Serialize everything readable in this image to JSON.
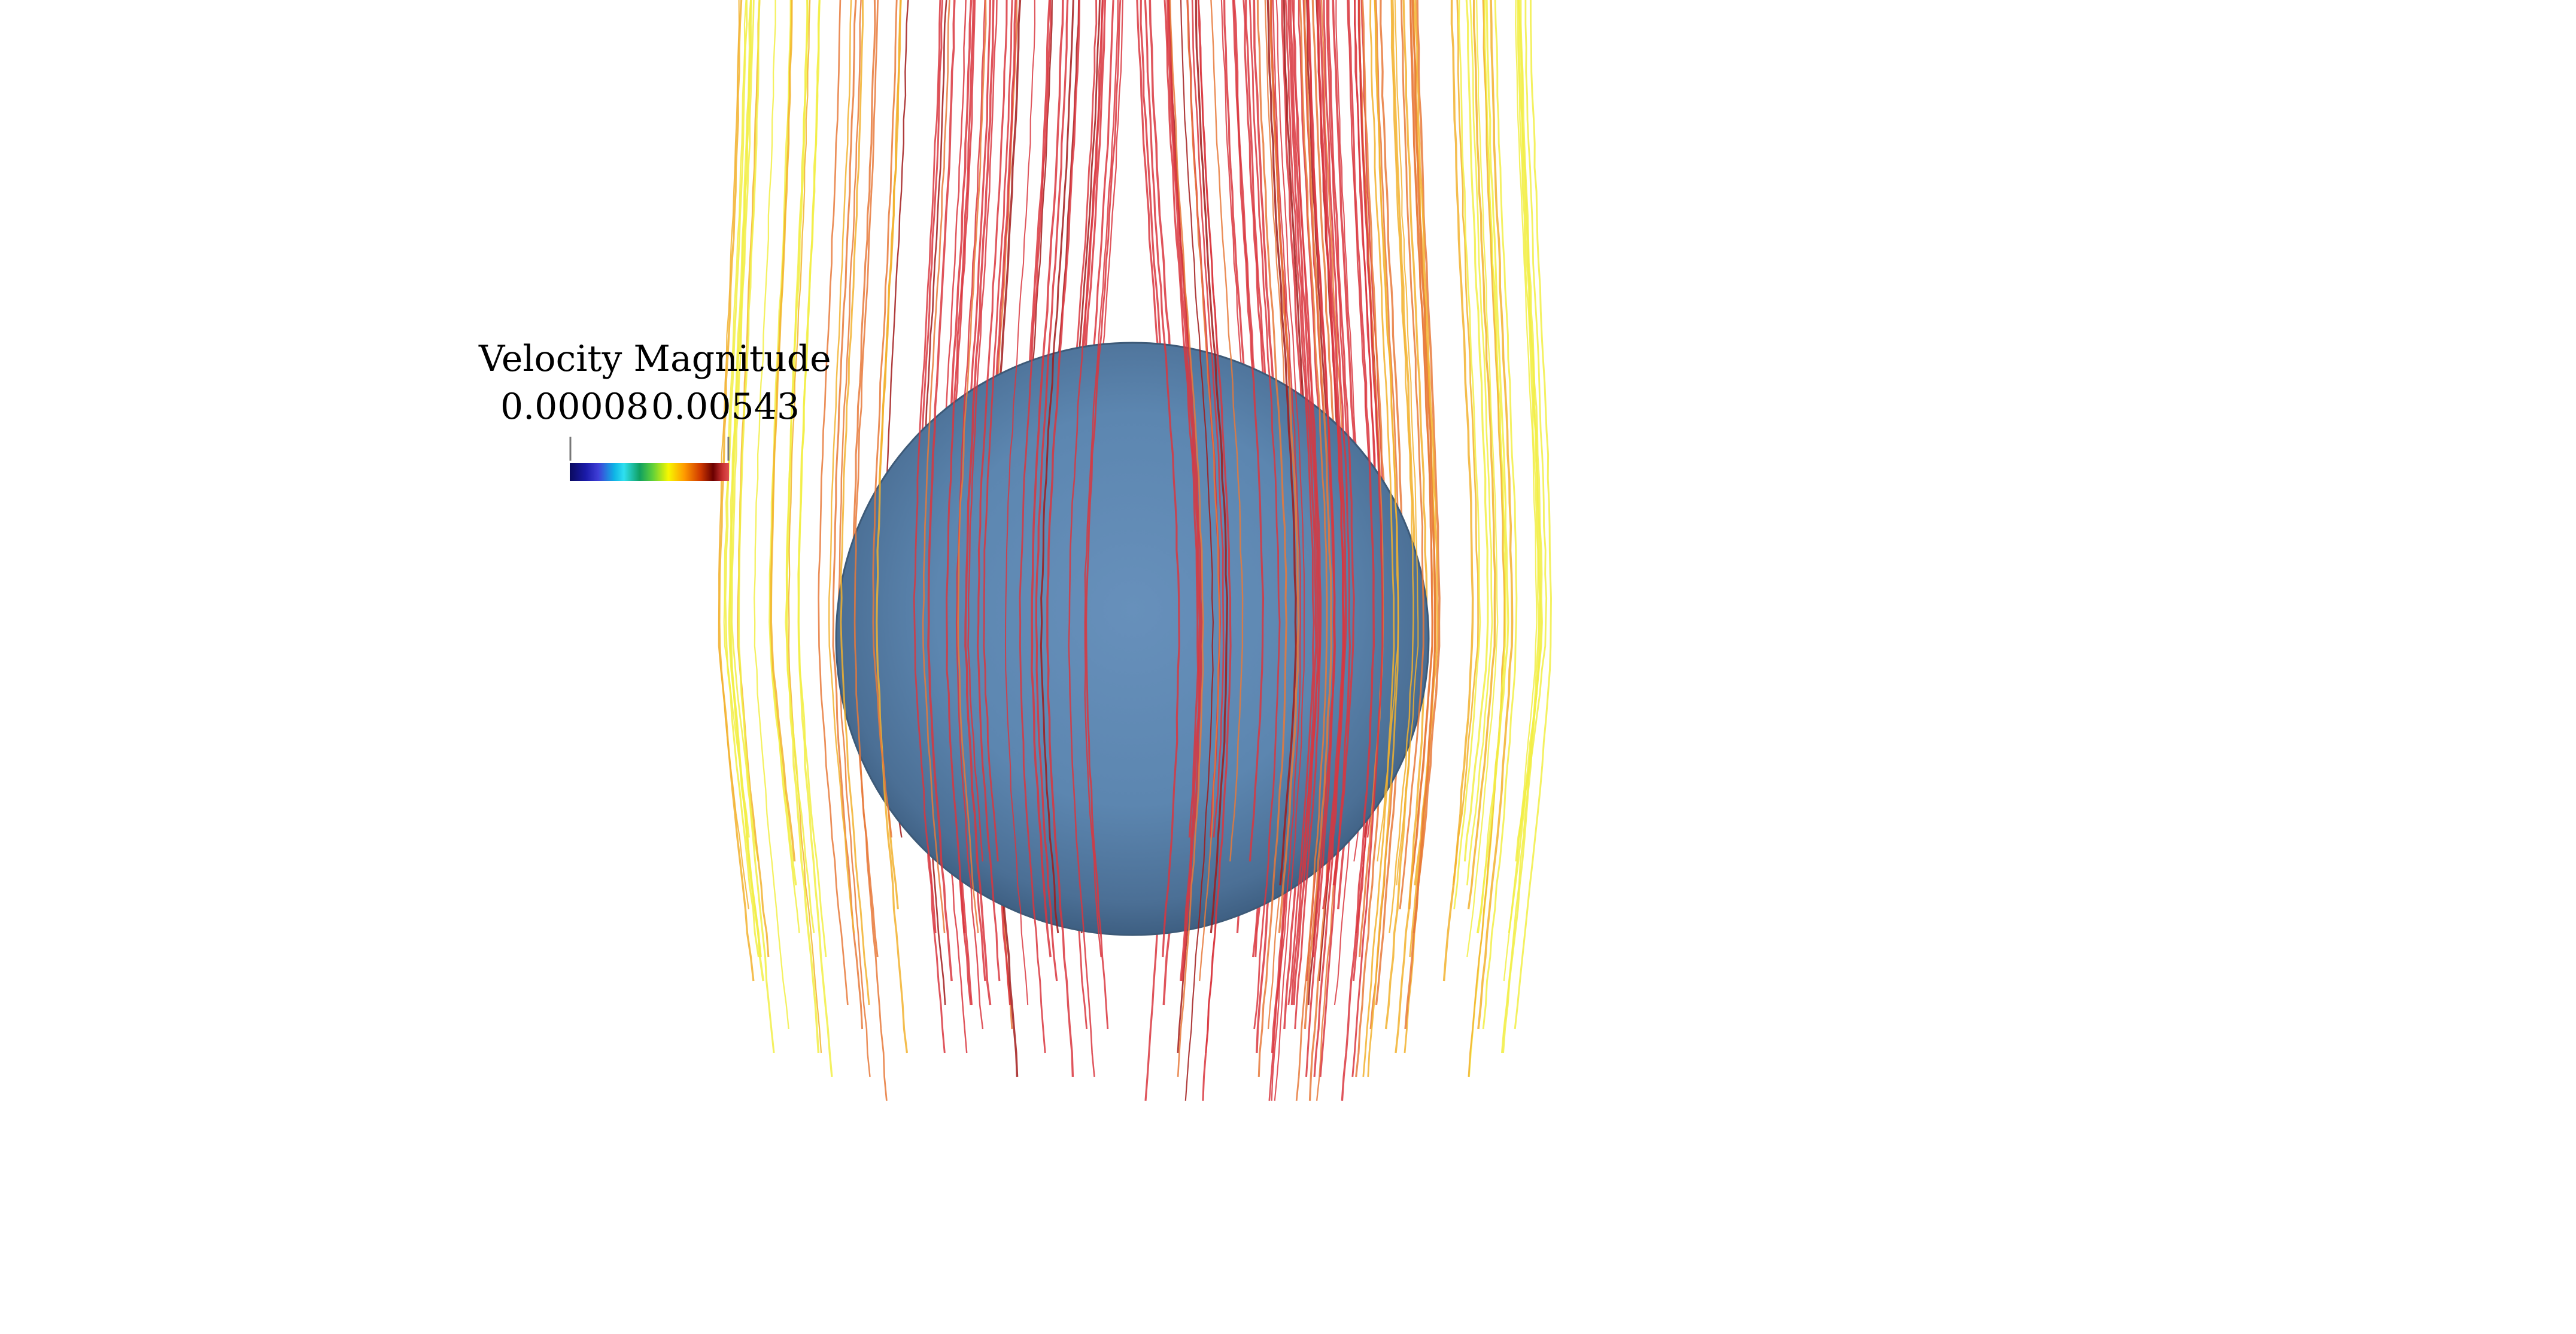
{
  "legend": {
    "title": "Velocity Magnitude",
    "min_label": "0.00008",
    "max_label": "0.00543"
  },
  "scene": {
    "object": "sphere",
    "sphere_color": "#5b84ad",
    "streamline_colors": [
      "#d9363e",
      "#e8793a",
      "#f2b12e",
      "#f2ef45",
      "#a11a1a"
    ]
  }
}
